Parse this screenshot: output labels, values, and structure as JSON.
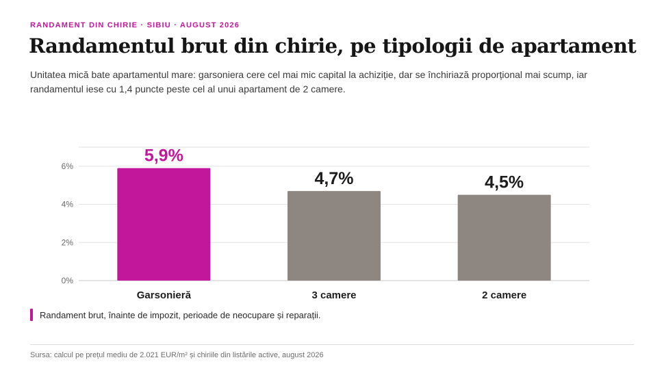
{
  "header": {
    "kicker": "RANDAMENT DIN CHIRIE · SIBIU · AUGUST 2026",
    "title": "Randamentul brut din chirie, pe tipologii de apartament",
    "subtitle": "Unitatea mică bate apartamentul mare: garsoniera cere cel mai mic capital la achiziție, dar se închiriază proporțional mai scump, iar randamentul iese cu 1,4 puncte peste cel al unui apartament de 2 camere."
  },
  "chart_data": {
    "type": "bar",
    "categories": [
      "Garsonieră",
      "3 camere",
      "2 camere"
    ],
    "values": [
      5.9,
      4.7,
      4.5
    ],
    "value_labels": [
      "5,9%",
      "4,7%",
      "4,5%"
    ],
    "bar_colors": [
      "#c2179b",
      "#8e8680",
      "#8e8680"
    ],
    "label_colors": [
      "#c2179b",
      "#1c1c1c",
      "#1c1c1c"
    ],
    "y_ticks": [
      0,
      2,
      4,
      6
    ],
    "y_tick_labels": [
      "0%",
      "2%",
      "4%",
      "6%"
    ],
    "ylim": [
      0,
      7
    ],
    "grid": true
  },
  "legend": {
    "label": "Randament brut, înainte de impozit, perioade de neocupare și reparații.",
    "color": "#c2179b"
  },
  "footer": {
    "source": "Sursa: calcul pe prețul mediu de 2.021 EUR/m² și chiriile din listările active, august 2026"
  }
}
